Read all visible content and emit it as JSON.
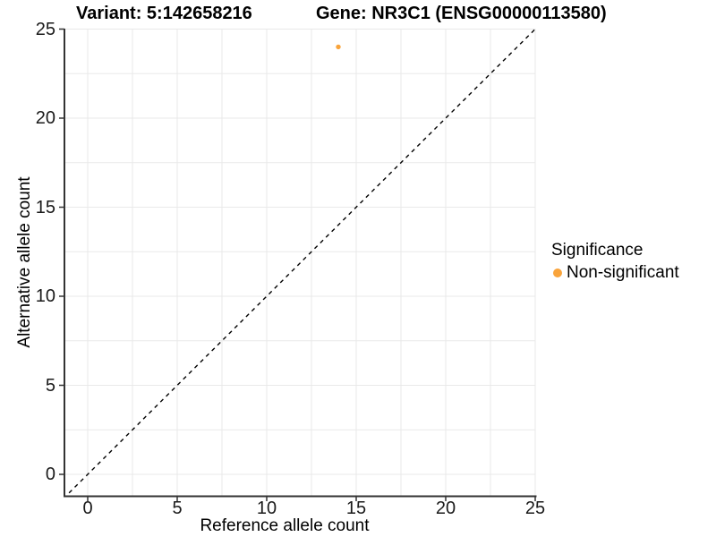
{
  "titles": {
    "variant": "Variant: 5:142658216",
    "gene": "Gene: NR3C1 (ENSG00000113580)"
  },
  "axes": {
    "x": {
      "label": "Reference allele count"
    },
    "y": {
      "label": "Alternative allele count"
    }
  },
  "legend": {
    "title": "Significance",
    "items": [
      {
        "label": "Non-significant",
        "color": "#F9A43B"
      }
    ]
  },
  "chart_data": {
    "type": "scatter",
    "title": "Variant: 5:142658216   Gene: NR3C1 (ENSG00000113580)",
    "xlabel": "Reference allele count",
    "ylabel": "Alternative allele count",
    "xlim": [
      -1.3,
      25.05
    ],
    "ylim": [
      -1.23,
      25.05
    ],
    "x_ticks": [
      0,
      5,
      10,
      15,
      20,
      25
    ],
    "y_ticks": [
      0,
      5,
      10,
      15,
      20,
      25
    ],
    "grid": true,
    "grid_step": 2.5,
    "legend_position": "right",
    "series": [
      {
        "name": "Non-significant",
        "color": "#F9A43B",
        "points": [
          [
            14,
            24
          ]
        ]
      }
    ],
    "reference_line": {
      "type": "identity",
      "style": "dashed",
      "color": "#000000"
    },
    "colors": {
      "grid": "#E9E9E9",
      "axis": "#333333",
      "background": "#FFFFFF"
    }
  }
}
